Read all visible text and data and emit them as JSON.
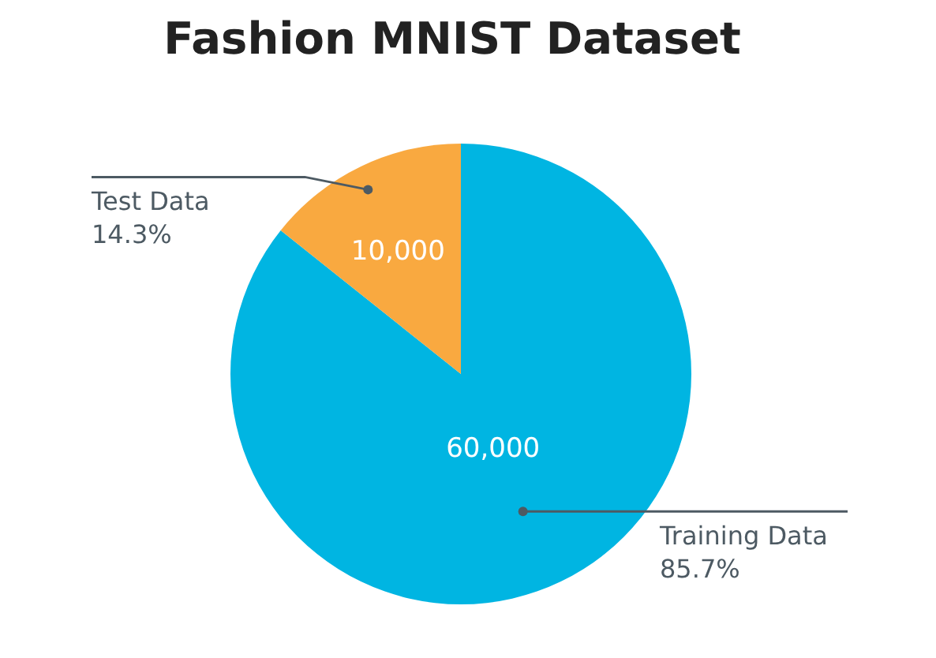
{
  "chart_data": {
    "type": "pie",
    "title": "Fashion MNIST Dataset",
    "categories": [
      "Training Data",
      "Test Data"
    ],
    "values": [
      60000,
      10000
    ],
    "colors": [
      "#00b5e2",
      "#f9a940"
    ],
    "value_labels": [
      "60,000",
      "10,000"
    ],
    "annotations": [
      "85.7%",
      "14.3%"
    ]
  }
}
